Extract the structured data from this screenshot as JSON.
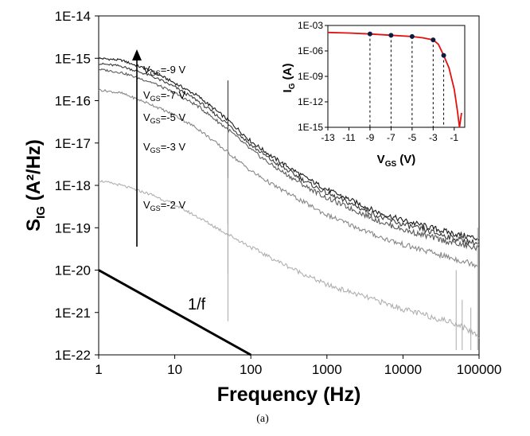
{
  "chart_data": [
    {
      "type": "line",
      "panel_label": "(a)",
      "xlabel": "Frequency (Hz)",
      "ylabel_main": "S",
      "ylabel_sub": "IG",
      "ylabel_rest": " (A²/Hz)",
      "x_scale": "log",
      "y_scale": "log",
      "xlim": [
        1,
        100000
      ],
      "ylim": [
        1e-22,
        1e-14
      ],
      "x_ticks": [
        "1",
        "10",
        "100",
        "1000",
        "10000",
        "100000"
      ],
      "y_ticks": [
        "1E-22",
        "1E-21",
        "1E-20",
        "1E-19",
        "1E-18",
        "1E-17",
        "1E-16",
        "1E-15",
        "1E-14"
      ],
      "grid": false,
      "series": [
        {
          "name": "VGS=-9 V",
          "label_main": "V",
          "label_sub": "GS",
          "label_rest": "=-9 V",
          "color": "#1a1a1a",
          "x": [
            1,
            2,
            5,
            10,
            20,
            50,
            100,
            200,
            500,
            1000,
            5000,
            10000,
            50000,
            100000
          ],
          "y": [
            1e-15,
            9e-16,
            5e-16,
            2.6e-16,
            1.3e-16,
            3.5e-17,
            1.1e-17,
            4.5e-18,
            1.6e-18,
            8e-19,
            2.2e-19,
            1.5e-19,
            7e-20,
            5.5e-20
          ]
        },
        {
          "name": "VGS=-7 V",
          "label_main": "V",
          "label_sub": "GS",
          "label_rest": "=-7 V",
          "color": "#3a3a3a",
          "x": [
            1,
            2,
            5,
            10,
            20,
            50,
            100,
            200,
            500,
            1000,
            5000,
            10000,
            50000,
            100000
          ],
          "y": [
            7.5e-16,
            6.5e-16,
            3.8e-16,
            2.1e-16,
            1e-16,
            2.8e-17,
            9e-18,
            3.6e-18,
            1.3e-18,
            6.5e-19,
            1.8e-19,
            1.2e-19,
            5.5e-20,
            4.2e-20
          ]
        },
        {
          "name": "VGS=-5 V",
          "label_main": "V",
          "label_sub": "GS",
          "label_rest": "=-5 V",
          "color": "#5a5a5a",
          "x": [
            1,
            2,
            5,
            10,
            20,
            50,
            100,
            200,
            500,
            1000,
            5000,
            10000,
            50000,
            100000
          ],
          "y": [
            5.5e-16,
            4.6e-16,
            2.7e-16,
            1.5e-16,
            7.5e-17,
            2.1e-17,
            7e-18,
            2.8e-18,
            1e-18,
            5e-19,
            1.4e-19,
            9e-20,
            4.2e-20,
            3.2e-20
          ]
        },
        {
          "name": "VGS=-3 V",
          "label_main": "V",
          "label_sub": "GS",
          "label_rest": "=-3 V",
          "color": "#888888",
          "x": [
            1,
            2,
            5,
            10,
            20,
            50,
            100,
            200,
            500,
            1000,
            5000,
            10000,
            50000,
            100000
          ],
          "y": [
            1.8e-16,
            1.5e-16,
            8e-17,
            4.5e-17,
            2.2e-17,
            6e-18,
            2.2e-18,
            1e-18,
            4e-19,
            2e-19,
            6e-20,
            4e-20,
            1.8e-20,
            1.3e-20
          ]
        },
        {
          "name": "VGS=-2 V",
          "label_main": "V",
          "label_sub": "GS",
          "label_rest": "=-2 V",
          "color": "#b0b0b0",
          "x": [
            1,
            2,
            5,
            10,
            20,
            50,
            100,
            200,
            500,
            1000,
            5000,
            10000,
            50000,
            100000
          ],
          "y": [
            1.3e-18,
            1e-18,
            6e-19,
            3.5e-19,
            1.8e-19,
            7e-20,
            3.5e-20,
            1.8e-20,
            8e-21,
            4.5e-21,
            1.8e-21,
            1.2e-21,
            5.5e-22,
            2.8e-22
          ]
        }
      ],
      "reference_line": {
        "label": "1/f",
        "x": [
          1,
          100
        ],
        "y": [
          1e-20,
          1e-22
        ]
      },
      "trend_arrow": {
        "direction": "up"
      }
    },
    {
      "type": "line",
      "role": "inset",
      "xlabel_main": "V",
      "xlabel_sub": "GS",
      "xlabel_rest": " (V)",
      "ylabel_main": "I",
      "ylabel_sub": "G",
      "ylabel_rest": " (A)",
      "y_scale": "log",
      "xlim": [
        -13,
        0
      ],
      "ylim": [
        1e-15,
        0.001
      ],
      "x_ticks": [
        "-13",
        "-11",
        "-9",
        "-7",
        "-5",
        "-3",
        "-1"
      ],
      "y_ticks": [
        "1E-15",
        "1E-12",
        "1E-09",
        "1E-06",
        "1E-03"
      ],
      "grid": false,
      "series": [
        {
          "color": "#e3100e",
          "x": [
            -13,
            -11,
            -9,
            -7,
            -5,
            -4,
            -3,
            -2.5,
            -2,
            -1.5,
            -1,
            -0.7,
            -0.5,
            -0.3
          ],
          "y": [
            0.00015,
            0.00013,
            0.0001,
            7e-05,
            5e-05,
            3.5e-05,
            2e-05,
            6e-06,
            3e-07,
            1e-08,
            3e-11,
            1e-13,
            1e-15,
            5e-14
          ]
        }
      ],
      "markers": {
        "color": "#0d1b40",
        "x": [
          -9,
          -7,
          -5,
          -3,
          -2
        ],
        "y": [
          0.0001,
          7e-05,
          5e-05,
          2e-05,
          3e-07
        ]
      }
    }
  ]
}
